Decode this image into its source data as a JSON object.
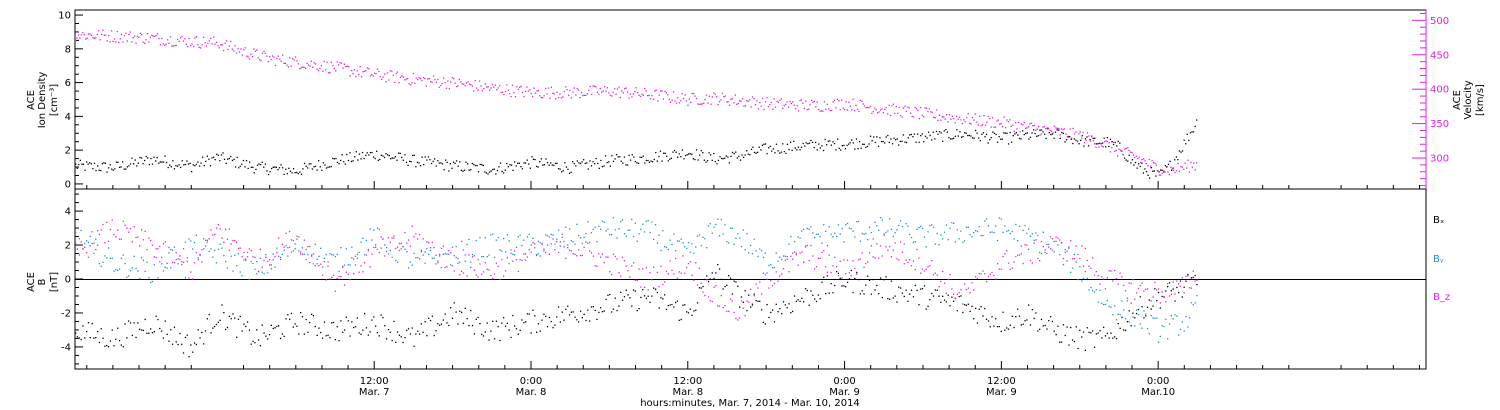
{
  "figure": {
    "x_axis_caption": "hours:minutes, Mar.  7, 2014 - Mar. 10, 2014",
    "x_ticks": [
      {
        "time": "12:00",
        "date": "Mar. 7",
        "t": 12
      },
      {
        "time": "0:00",
        "date": "Mar. 8",
        "t": 24
      },
      {
        "time": "12:00",
        "date": "Mar. 8",
        "t": 36
      },
      {
        "time": "0:00",
        "date": "Mar. 9",
        "t": 48
      },
      {
        "time": "12:00",
        "date": "Mar. 9",
        "t": 60
      },
      {
        "time": "0:00",
        "date": "Mar.10",
        "t": 72
      }
    ],
    "x_range_hours": [
      -10.9,
      92.5
    ]
  },
  "top_panel": {
    "left_label_lines": [
      "ACE",
      "Ion Density",
      "[cm⁻³]"
    ],
    "right_label_lines": [
      "ACE",
      "Velocity",
      "[km/s]"
    ],
    "left_ticks": [
      "0",
      "2",
      "4",
      "6",
      "8",
      "10"
    ],
    "right_ticks": [
      "300",
      "350",
      "400",
      "450",
      "500"
    ],
    "left_color": "#000000",
    "right_color": "#e020e0"
  },
  "bottom_panel": {
    "left_label_lines": [
      "ACE",
      "B",
      "[nT]"
    ],
    "left_ticks": [
      "-4",
      "-2",
      "0",
      "2",
      "4"
    ],
    "legend": [
      {
        "label": "Bₓ",
        "color": "#000000"
      },
      {
        "label": "Bᵧ",
        "color": "#1e88e5"
      },
      {
        "label": "B_z",
        "color": "#e020e0"
      }
    ]
  },
  "chart_data": [
    {
      "type": "scatter",
      "title": "",
      "xlabel": "hours:minutes, Mar.  7, 2014 - Mar. 10, 2014",
      "x_unit": "hours since Mar. 7 0:00",
      "xlim": [
        -10.9,
        92.5
      ],
      "grid": false,
      "series": [
        {
          "axis": "left",
          "color": "#000000",
          "ylabel": "ACE Ion Density [cm⁻³]",
          "ylim": [
            -0.3,
            10.3
          ],
          "x": [
            -10.9,
            -8,
            -5,
            -2,
            0,
            3,
            6,
            9,
            12,
            15,
            18,
            21,
            24,
            27,
            30,
            33,
            36,
            38,
            40,
            42,
            45,
            48,
            51,
            54,
            57,
            60,
            62,
            64,
            66,
            68,
            69,
            70,
            71,
            72,
            73,
            74,
            75
          ],
          "y": [
            1.1,
            1.0,
            1.5,
            1.1,
            1.6,
            1.0,
            0.8,
            1.4,
            1.8,
            1.4,
            1.1,
            0.9,
            1.3,
            1.0,
            1.4,
            1.6,
            1.9,
            1.5,
            1.7,
            2.1,
            2.3,
            2.4,
            2.6,
            2.8,
            3.0,
            2.7,
            2.9,
            3.0,
            2.6,
            2.5,
            2.2,
            1.3,
            0.8,
            0.5,
            1.2,
            2.5,
            3.8
          ]
        },
        {
          "axis": "right",
          "color": "#e020e0",
          "ylabel": "ACE Velocity [km/s]",
          "ylim": [
            255,
            515
          ],
          "x": [
            -10.9,
            -8,
            -5,
            -2,
            0,
            2,
            4,
            6,
            9,
            12,
            15,
            18,
            21,
            24,
            27,
            30,
            33,
            36,
            38,
            40,
            42,
            44,
            46,
            48,
            51,
            54,
            57,
            60,
            62,
            64,
            66,
            68,
            69,
            70,
            71,
            72,
            73,
            74,
            75
          ],
          "y": [
            480,
            478,
            475,
            470,
            468,
            455,
            445,
            440,
            432,
            422,
            415,
            410,
            402,
            396,
            396,
            398,
            393,
            386,
            388,
            384,
            380,
            378,
            377,
            380,
            372,
            365,
            358,
            352,
            345,
            340,
            333,
            320,
            310,
            305,
            295,
            285,
            283,
            288,
            292
          ]
        }
      ]
    },
    {
      "type": "scatter",
      "title": "",
      "xlabel": "hours:minutes, Mar.  7, 2014 - Mar. 10, 2014",
      "x_unit": "hours since Mar. 7 0:00",
      "xlim": [
        -10.9,
        92.5
      ],
      "ylabel": "ACE B [nT]",
      "ylim": [
        -5.3,
        5.3
      ],
      "grid": false,
      "reference_line": 0,
      "legend_position": "right",
      "series": [
        {
          "name": "Bₓ",
          "color": "#000000",
          "x": [
            -10.9,
            -8,
            -5,
            -2,
            0,
            3,
            6,
            9,
            12,
            15,
            18,
            21,
            24,
            27,
            30,
            33,
            36,
            38,
            40,
            42,
            45,
            48,
            51,
            54,
            57,
            60,
            62,
            64,
            66,
            68,
            70,
            72,
            74,
            75
          ],
          "y": [
            -3.0,
            -3.5,
            -2.5,
            -4.0,
            -2.0,
            -3.5,
            -2.5,
            -3.0,
            -2.5,
            -3.5,
            -2.0,
            -3.0,
            -2.5,
            -2.0,
            -1.5,
            -1.0,
            -2.0,
            0.5,
            -1.0,
            -2.0,
            -1.0,
            0.0,
            -0.5,
            -1.0,
            -1.5,
            -2.5,
            -2.0,
            -3.0,
            -3.5,
            -3.5,
            -2.0,
            -1.0,
            -0.5,
            0.0
          ]
        },
        {
          "name": "Bᵧ",
          "color": "#1e88e5",
          "x": [
            -10.9,
            -8,
            -5,
            -2,
            0,
            3,
            6,
            9,
            12,
            15,
            18,
            21,
            24,
            27,
            30,
            33,
            36,
            38,
            40,
            42,
            45,
            48,
            51,
            54,
            57,
            60,
            62,
            64,
            66,
            68,
            70,
            72,
            74,
            75
          ],
          "y": [
            2.5,
            1.0,
            0.5,
            2.0,
            1.5,
            0.5,
            2.0,
            1.0,
            2.5,
            1.0,
            1.5,
            2.0,
            2.0,
            2.5,
            3.0,
            2.8,
            1.5,
            3.0,
            2.5,
            1.0,
            2.5,
            2.8,
            3.0,
            2.5,
            2.8,
            3.0,
            2.5,
            2.0,
            0.5,
            -1.5,
            -2.0,
            -3.0,
            -2.5,
            -1.5
          ]
        },
        {
          "name": "B_z",
          "color": "#e020e0",
          "x": [
            -10.9,
            -8,
            -5,
            -2,
            0,
            3,
            6,
            9,
            12,
            15,
            18,
            21,
            24,
            27,
            30,
            33,
            36,
            38,
            40,
            42,
            45,
            48,
            51,
            54,
            57,
            60,
            62,
            64,
            66,
            68,
            70,
            72,
            74,
            75
          ],
          "y": [
            1.5,
            3.0,
            2.0,
            0.5,
            3.0,
            1.0,
            2.5,
            0.0,
            1.5,
            2.5,
            1.0,
            0.5,
            1.5,
            2.0,
            1.0,
            0.0,
            1.0,
            -1.0,
            -2.0,
            0.0,
            1.5,
            0.5,
            2.0,
            1.0,
            -1.0,
            1.0,
            1.5,
            2.0,
            1.5,
            0.0,
            -0.5,
            -0.8,
            -0.5,
            0.5
          ]
        }
      ]
    }
  ]
}
